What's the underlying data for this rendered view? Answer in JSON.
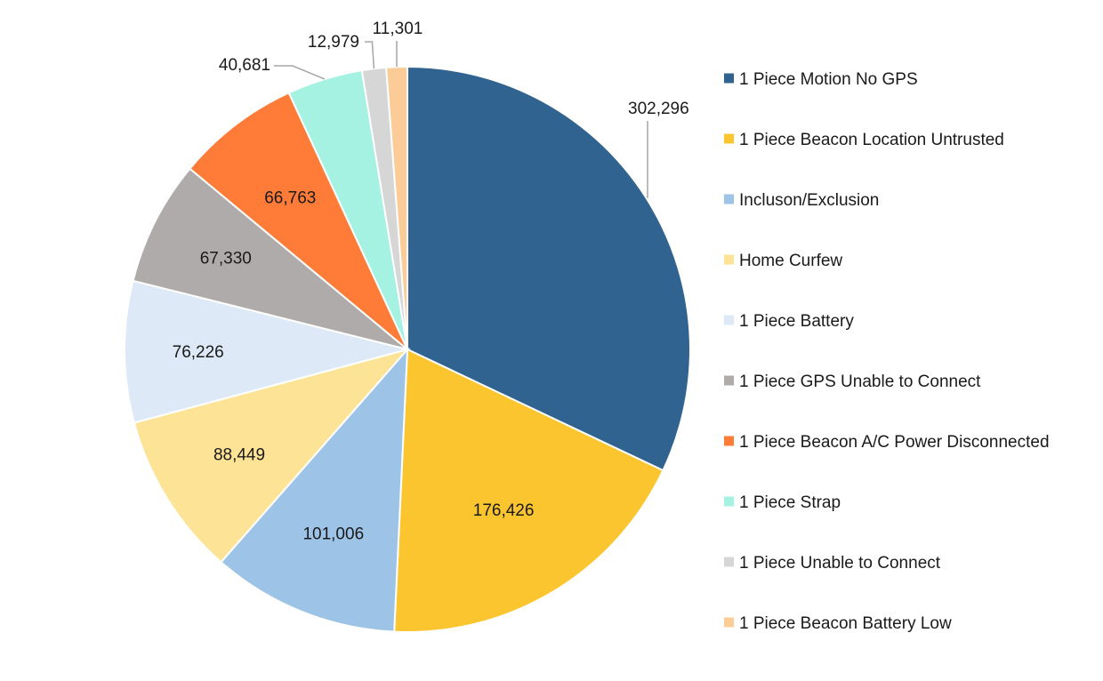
{
  "chart_data": {
    "type": "pie",
    "title": "",
    "start_angle": "12 o'clock",
    "direction": "clockwise",
    "legend_position": "right",
    "categories": [
      "1 Piece Motion No GPS",
      "1 Piece Beacon Location Untrusted",
      "Incluson/Exclusion",
      "Home Curfew",
      "1 Piece Battery",
      "1 Piece GPS Unable to Connect",
      "1 Piece Beacon A/C Power Disconnected",
      "1 Piece Strap",
      "1 Piece Unable to Connect",
      "1 Piece Beacon Battery Low"
    ],
    "values": [
      302296,
      176426,
      101006,
      88449,
      76226,
      67330,
      66763,
      40681,
      12979,
      11301
    ],
    "value_labels": [
      "302,296",
      "176,426",
      "101,006",
      "88,449",
      "76,226",
      "67,330",
      "66,763",
      "40,681",
      "12,979",
      "11,301"
    ],
    "colors": [
      "#30638f",
      "#fbc52f",
      "#9dc3e6",
      "#fde396",
      "#dde9f6",
      "#afabab",
      "#fe7c37",
      "#a5f1e2",
      "#d6d6d6",
      "#fbcb98"
    ]
  }
}
